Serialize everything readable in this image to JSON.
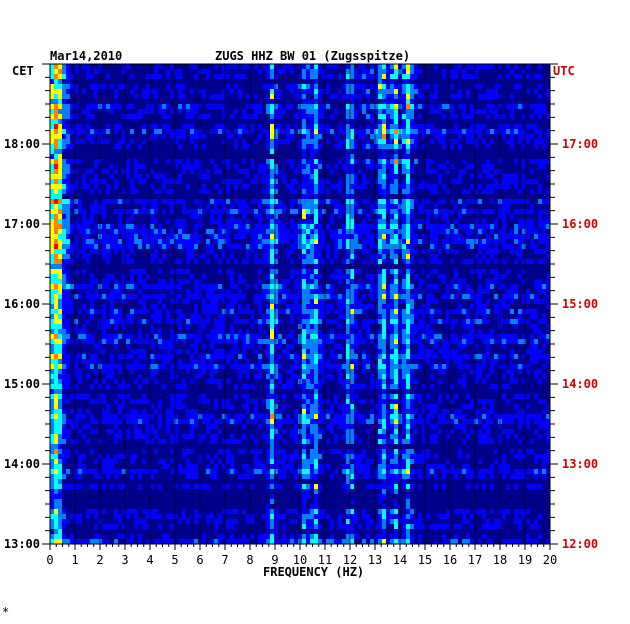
{
  "chart_data": {
    "type": "heatmap",
    "date": "Mar14,2010",
    "title": "ZUGS HHZ BW 01 (Zugsspitze)",
    "xlabel": "FREQUENCY (HZ)",
    "left_axis_label": "CET",
    "right_axis_label": "UTC",
    "x_ticks": [
      "0",
      "1",
      "2",
      "3",
      "4",
      "5",
      "6",
      "7",
      "8",
      "9",
      "10",
      "11",
      "12",
      "13",
      "14",
      "15",
      "16",
      "17",
      "18",
      "19",
      "20"
    ],
    "xlim": [
      0,
      20
    ],
    "cet_ticks": [
      "18:00",
      "17:00",
      "16:00",
      "15:00",
      "14:00",
      "13:00"
    ],
    "utc_ticks": [
      "17:00",
      "16:00",
      "15:00",
      "14:00",
      "13:00",
      "12:00"
    ],
    "time_range_cet": [
      "13:00",
      "19:00"
    ],
    "colormap": [
      "#00008b",
      "#0000ff",
      "#0080ff",
      "#00ffff",
      "#ffff00",
      "#ff8000",
      "#ff0000"
    ],
    "utc_color": "#cc0000",
    "spectral_lines_hz": [
      0.3,
      8.9,
      10.2,
      10.6,
      12.0,
      13.3,
      13.8,
      14.3
    ],
    "footer_mark": "*"
  }
}
